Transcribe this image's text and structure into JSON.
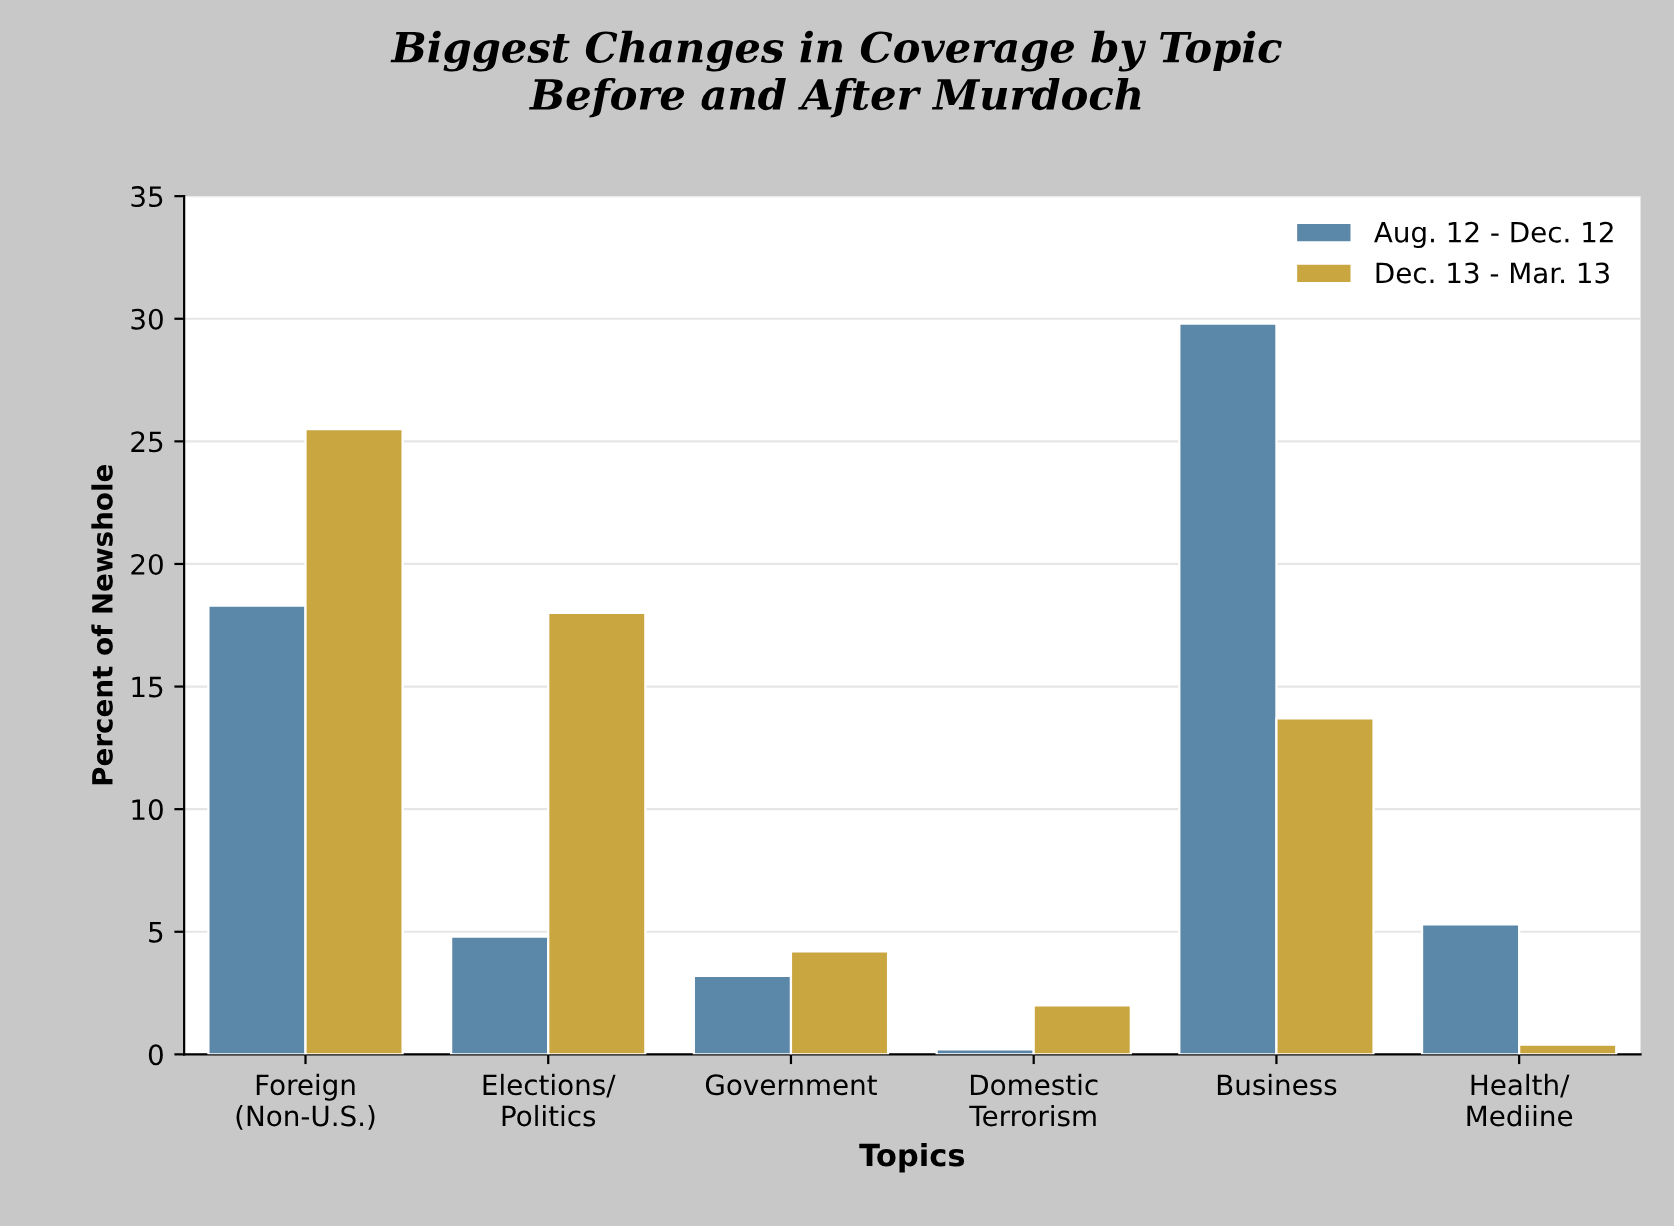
{
  "chart_data": {
    "type": "bar",
    "title": "Biggest Changes in Coverage by Topic\nBefore and After Murdoch",
    "xlabel": "Topics",
    "ylabel": "Percent of Newshole",
    "categories": [
      "Foreign\n(Non-U.S.)",
      "Elections/\nPolitics",
      "Government",
      "Domestic\nTerrorism",
      "Business",
      "Health/\nMediine"
    ],
    "series": [
      {
        "name": "Aug. 12 - Dec. 12",
        "color": "#5b87a8",
        "values": [
          18.3,
          4.8,
          3.2,
          0.2,
          29.8,
          5.3
        ]
      },
      {
        "name": "Dec. 13 - Mar. 13",
        "color": "#c9a640",
        "values": [
          25.5,
          18.0,
          4.2,
          2.0,
          13.7,
          0.4
        ]
      }
    ],
    "ylim": [
      0,
      35
    ],
    "yticks": [
      0,
      5,
      10,
      15,
      20,
      25,
      30,
      35
    ],
    "grid": "y",
    "legend": "top right"
  }
}
